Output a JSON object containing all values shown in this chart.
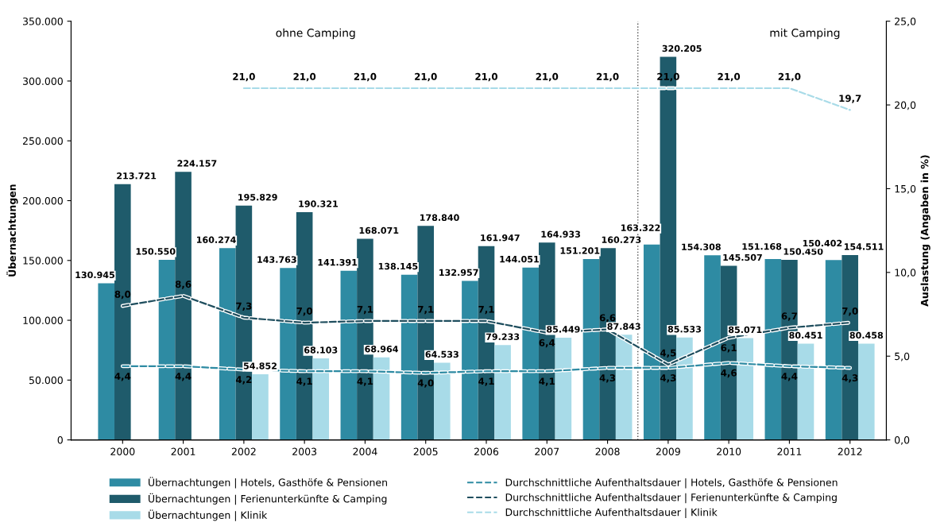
{
  "chart_data": {
    "type": "bar",
    "categories": [
      "2000",
      "2001",
      "2002",
      "2003",
      "2004",
      "2005",
      "2006",
      "2007",
      "2008",
      "2009",
      "2010",
      "2011",
      "2012"
    ],
    "ylabel": "Übernachtungen",
    "y2label": "Auslastung (Angaben in %)",
    "ylim": [
      0,
      350000
    ],
    "yticks": [
      {
        "value": 0,
        "label": "0"
      },
      {
        "value": 50000,
        "label": "50.000"
      },
      {
        "value": 100000,
        "label": "100.000"
      },
      {
        "value": 150000,
        "label": "150.000"
      },
      {
        "value": 200000,
        "label": "200.000"
      },
      {
        "value": 250000,
        "label": "250.000"
      },
      {
        "value": 300000,
        "label": "300.000"
      },
      {
        "value": 350000,
        "label": "350.000"
      }
    ],
    "y2lim": [
      0,
      25
    ],
    "y2ticks": [
      {
        "value": 0,
        "label": "0,0"
      },
      {
        "value": 5,
        "label": "5,0"
      },
      {
        "value": 10,
        "label": "10,0"
      },
      {
        "value": 15,
        "label": "15,0"
      },
      {
        "value": 20,
        "label": "20,0"
      },
      {
        "value": 25,
        "label": "25,0"
      }
    ],
    "series": [
      {
        "name": "Übernachtungen | Hotels, Gasthöfe & Pensionen",
        "color": "#2e8ba3",
        "values": [
          130945,
          150550,
          160274,
          143763,
          141391,
          138145,
          132957,
          144051,
          151201,
          163322,
          154308,
          151168,
          150402
        ],
        "value_labels": [
          "130.945",
          "150.550",
          "160.274",
          "143.763",
          "141.391",
          "138.145",
          "132.957",
          "144.051",
          "151.201",
          "163.322",
          "154.308",
          "151.168",
          "150.402"
        ]
      },
      {
        "name": "Übernachtungen | Ferienunterkünfte & Camping",
        "color": "#1f5b6b",
        "values": [
          213721,
          224157,
          195829,
          190321,
          168071,
          178840,
          161947,
          164933,
          160273,
          320205,
          145507,
          150450,
          154511
        ],
        "value_labels": [
          "213.721",
          "224.157",
          "195.829",
          "190.321",
          "168.071",
          "178.840",
          "161.947",
          "164.933",
          "160.273",
          "320.205",
          "145.507",
          "150.450",
          "154.511"
        ]
      },
      {
        "name": "Übernachtungen | Klinik",
        "color": "#a8dbe8",
        "values": [
          null,
          null,
          54852,
          68103,
          68964,
          64533,
          79233,
          85449,
          87843,
          85533,
          85071,
          80451,
          80458
        ],
        "value_labels": [
          null,
          null,
          "54.852",
          "68.103",
          "68.964",
          "64.533",
          "79.233",
          "85.449",
          "87.843",
          "85.533",
          "85.071",
          "80.451",
          "80.458"
        ]
      },
      {
        "name": "Durchschnittliche Aufenthaltsdauer | Hotels, Gasthöfe & Pensionen",
        "type": "line",
        "axis": "y2",
        "line_style": "dashed",
        "color": "#2e8ba3",
        "values": [
          4.4,
          4.4,
          4.2,
          4.1,
          4.1,
          4.0,
          4.1,
          4.1,
          4.3,
          4.3,
          4.6,
          4.4,
          4.3
        ],
        "value_labels": [
          "4,4",
          "4,4",
          "4,2",
          "4,1",
          "4,1",
          "4,0",
          "4,1",
          "4,1",
          "4,3",
          "4,3",
          "4,6",
          "4,4",
          "4,3"
        ]
      },
      {
        "name": "Durchschnittliche Aufenthaltsdauer | Ferienunterkünfte & Camping",
        "type": "line",
        "axis": "y2",
        "line_style": "dashed",
        "color": "#1f4e5e",
        "values": [
          8.0,
          8.6,
          7.3,
          7.0,
          7.1,
          7.1,
          7.1,
          6.4,
          6.6,
          4.5,
          6.1,
          6.7,
          7.0
        ],
        "value_labels": [
          "8,0",
          "8,6",
          "7,3",
          "7,0",
          "7,1",
          "7,1",
          "7,1",
          "6,4",
          "6,6",
          "4,5",
          "6,1",
          "6,7",
          "7,0"
        ]
      },
      {
        "name": "Durchschnittliche Aufenthaltsdauer | Klinik",
        "type": "line",
        "axis": "y2",
        "line_style": "dashed",
        "color": "#a8dbe8",
        "values": [
          null,
          null,
          21.0,
          21.0,
          21.0,
          21.0,
          21.0,
          21.0,
          21.0,
          21.0,
          21.0,
          21.0,
          19.7
        ],
        "value_labels": [
          null,
          null,
          "21,0",
          "21,0",
          "21,0",
          "21,0",
          "21,0",
          "21,0",
          "21,0",
          "21,0",
          "21,0",
          "21,0",
          "19,7"
        ]
      }
    ],
    "annotations": [
      "ohne Camping",
      "mit Camping"
    ],
    "legend": "bottom",
    "grid": false
  }
}
